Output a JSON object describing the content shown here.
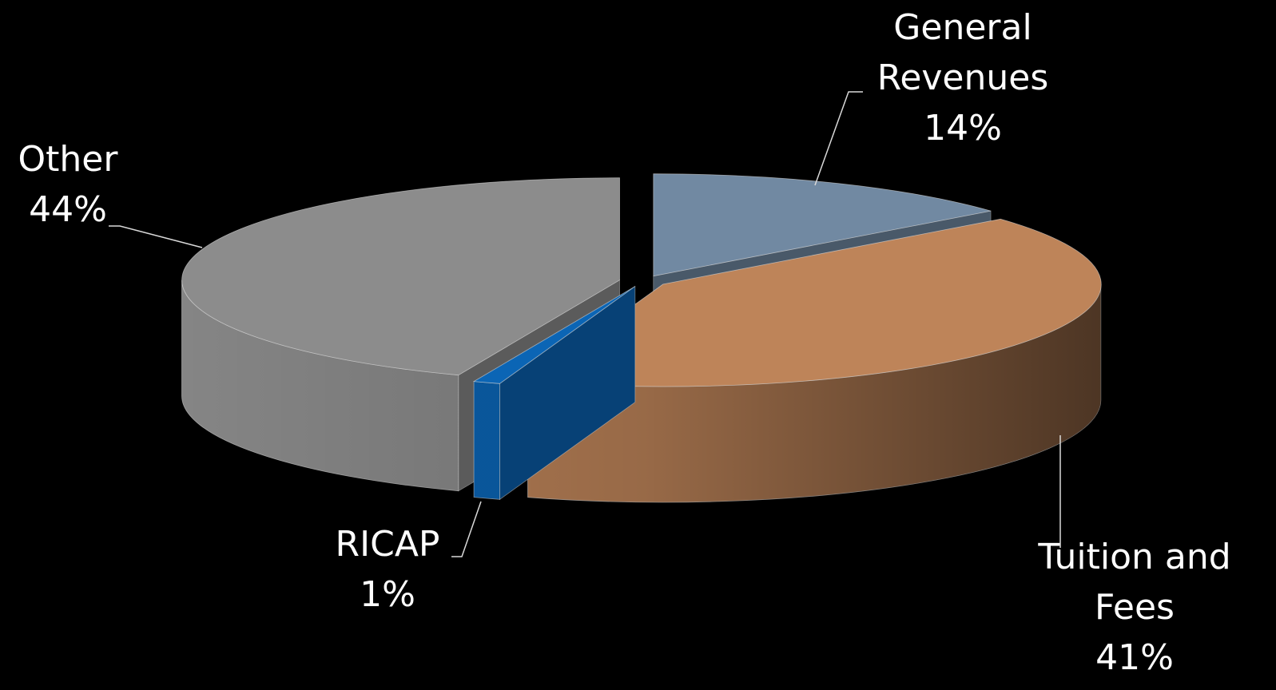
{
  "chart_data": {
    "type": "pie3d",
    "categories": [
      "General Revenues",
      "Tuition and Fees",
      "RICAP",
      "Other"
    ],
    "values": [
      14,
      41,
      1,
      44
    ],
    "value_labels": [
      "14%",
      "41%",
      "1%",
      "44%"
    ],
    "colors": [
      "#7189a2",
      "#be8459",
      "#0b65b5",
      "#8c8c8c"
    ]
  }
}
